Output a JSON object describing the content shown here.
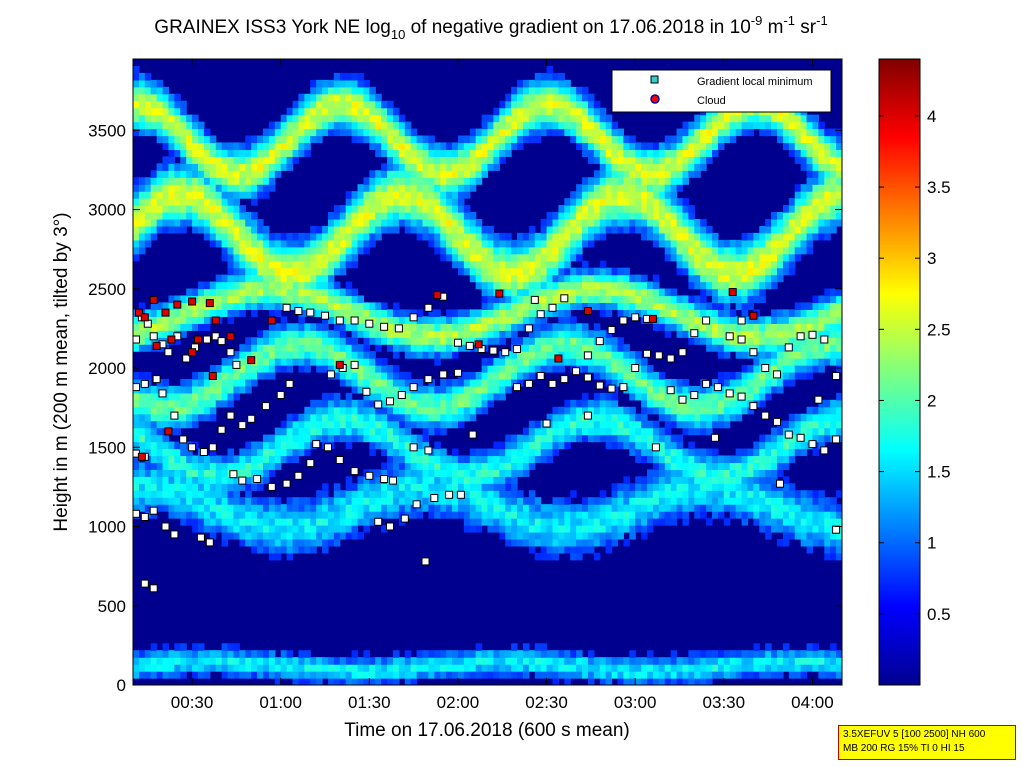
{
  "chart_data": {
    "type": "heatmap",
    "title": {
      "prefix": "GRAINEX ISS3 York NE log",
      "sub": "10",
      "middle": " of negative gradient on 17.06.2018 in 10",
      "sup1": "-9",
      "unit1": " m",
      "sup2": "-1",
      "unit2": " sr",
      "sup3": "-1"
    },
    "xlabel": "Time on 17.06.2018 (600 s mean)",
    "ylabel": "Height in m (200 m mean, tilted by 3°)",
    "xlim": [
      "00:10",
      "04:10"
    ],
    "ylim": [
      0,
      3950
    ],
    "x_ticks": [
      {
        "t": "00:30",
        "label": "00:30"
      },
      {
        "t": "01:00",
        "label": "01:00"
      },
      {
        "t": "01:30",
        "label": "01:30"
      },
      {
        "t": "02:00",
        "label": "02:00"
      },
      {
        "t": "02:30",
        "label": "02:30"
      },
      {
        "t": "03:00",
        "label": "03:00"
      },
      {
        "t": "03:30",
        "label": "03:30"
      },
      {
        "t": "04:00",
        "label": "04:00"
      }
    ],
    "y_ticks": [
      {
        "v": 0,
        "label": "0"
      },
      {
        "v": 500,
        "label": "500"
      },
      {
        "v": 1000,
        "label": "1000"
      },
      {
        "v": 1500,
        "label": "1500"
      },
      {
        "v": 2000,
        "label": "2000"
      },
      {
        "v": 2500,
        "label": "2500"
      },
      {
        "v": 3000,
        "label": "3000"
      },
      {
        "v": 3500,
        "label": "3500"
      }
    ],
    "colorbar": {
      "range": [
        0,
        4.4
      ],
      "ticks": [
        {
          "v": 0.5,
          "label": "0.5"
        },
        {
          "v": 1,
          "label": "1"
        },
        {
          "v": 1.5,
          "label": "1.5"
        },
        {
          "v": 2,
          "label": "2"
        },
        {
          "v": 2.5,
          "label": "2.5"
        },
        {
          "v": 3,
          "label": "3"
        },
        {
          "v": 3.5,
          "label": "3.5"
        },
        {
          "v": 4,
          "label": "4"
        }
      ]
    },
    "legend": {
      "position": "top-right",
      "entries": [
        {
          "label": "Gradient local minimum",
          "marker": "square",
          "color": "#33cccc"
        },
        {
          "label": "Cloud",
          "marker": "circle",
          "color": "#ff0000",
          "edge": "#0000aa"
        }
      ]
    },
    "layers": [
      {
        "base": 120,
        "amp": 30,
        "period": 100,
        "thick": 100,
        "value": 1.6
      },
      {
        "base": 1120,
        "amp": 130,
        "period": 95,
        "thick": 200,
        "value": 1.6
      },
      {
        "base": 1500,
        "amp": 180,
        "period": 85,
        "thick": 150,
        "value": 1.8
      },
      {
        "base": 1950,
        "amp": 200,
        "period": 90,
        "thick": 150,
        "value": 2.1
      },
      {
        "base": 2350,
        "amp": 150,
        "period": 110,
        "thick": 130,
        "value": 2.4
      },
      {
        "base": 2850,
        "amp": 250,
        "period": 75,
        "thick": 200,
        "value": 2.6
      },
      {
        "base": 3450,
        "amp": 220,
        "period": 70,
        "thick": 170,
        "value": 2.6
      }
    ],
    "series": [
      {
        "name": "Gradient local minimum",
        "points": [
          [
            "00:11",
            2180
          ],
          [
            "00:13",
            2320
          ],
          [
            "00:15",
            2280
          ],
          [
            "00:17",
            2200
          ],
          [
            "00:20",
            2150
          ],
          [
            "00:22",
            2100
          ],
          [
            "00:25",
            2200
          ],
          [
            "00:28",
            2060
          ],
          [
            "00:31",
            2130
          ],
          [
            "00:35",
            2180
          ],
          [
            "00:38",
            2200
          ],
          [
            "00:40",
            2170
          ],
          [
            "00:43",
            2100
          ],
          [
            "00:45",
            2020
          ],
          [
            "00:20",
            1840
          ],
          [
            "00:24",
            1700
          ],
          [
            "00:27",
            1550
          ],
          [
            "00:30",
            1500
          ],
          [
            "00:34",
            1470
          ],
          [
            "00:37",
            1500
          ],
          [
            "00:40",
            1610
          ],
          [
            "00:43",
            1700
          ],
          [
            "00:47",
            1640
          ],
          [
            "00:50",
            1680
          ],
          [
            "00:55",
            1760
          ],
          [
            "01:00",
            1830
          ],
          [
            "01:03",
            1900
          ],
          [
            "00:11",
            1880
          ],
          [
            "00:14",
            1900
          ],
          [
            "00:18",
            1930
          ],
          [
            "00:11",
            1460
          ],
          [
            "00:14",
            1440
          ],
          [
            "00:11",
            1080
          ],
          [
            "00:14",
            1060
          ],
          [
            "00:17",
            1100
          ],
          [
            "00:21",
            1000
          ],
          [
            "00:24",
            950
          ],
          [
            "00:14",
            640
          ],
          [
            "00:17",
            610
          ],
          [
            "00:33",
            930
          ],
          [
            "00:36",
            900
          ],
          [
            "00:44",
            1330
          ],
          [
            "00:47",
            1290
          ],
          [
            "00:52",
            1300
          ],
          [
            "00:57",
            1250
          ],
          [
            "01:02",
            1270
          ],
          [
            "01:06",
            1320
          ],
          [
            "01:10",
            1400
          ],
          [
            "01:12",
            1520
          ],
          [
            "01:16",
            1500
          ],
          [
            "01:20",
            1420
          ],
          [
            "01:25",
            1350
          ],
          [
            "01:30",
            1320
          ],
          [
            "01:35",
            1300
          ],
          [
            "01:38",
            1290
          ],
          [
            "01:33",
            1030
          ],
          [
            "01:37",
            1000
          ],
          [
            "01:42",
            1050
          ],
          [
            "01:46",
            1140
          ],
          [
            "01:49",
            780
          ],
          [
            "01:52",
            1180
          ],
          [
            "01:57",
            1200
          ],
          [
            "02:01",
            1200
          ],
          [
            "02:05",
            1580
          ],
          [
            "01:45",
            1500
          ],
          [
            "01:50",
            1480
          ],
          [
            "01:02",
            2380
          ],
          [
            "01:06",
            2360
          ],
          [
            "01:10",
            2350
          ],
          [
            "01:15",
            2330
          ],
          [
            "01:20",
            2300
          ],
          [
            "01:25",
            2300
          ],
          [
            "01:30",
            2280
          ],
          [
            "01:35",
            2260
          ],
          [
            "01:40",
            2250
          ],
          [
            "01:45",
            2320
          ],
          [
            "01:50",
            2380
          ],
          [
            "01:55",
            2450
          ],
          [
            "01:17",
            1960
          ],
          [
            "01:21",
            2000
          ],
          [
            "01:25",
            2020
          ],
          [
            "01:29",
            1850
          ],
          [
            "01:33",
            1770
          ],
          [
            "01:37",
            1790
          ],
          [
            "01:41",
            1830
          ],
          [
            "01:45",
            1880
          ],
          [
            "01:50",
            1930
          ],
          [
            "01:55",
            1960
          ],
          [
            "02:00",
            1970
          ],
          [
            "02:00",
            2160
          ],
          [
            "02:04",
            2140
          ],
          [
            "02:08",
            2120
          ],
          [
            "02:12",
            2110
          ],
          [
            "02:16",
            2100
          ],
          [
            "02:20",
            2120
          ],
          [
            "02:24",
            2250
          ],
          [
            "02:28",
            2340
          ],
          [
            "02:32",
            2380
          ],
          [
            "02:20",
            1880
          ],
          [
            "02:24",
            1900
          ],
          [
            "02:28",
            1950
          ],
          [
            "02:32",
            1900
          ],
          [
            "02:36",
            1930
          ],
          [
            "02:40",
            1980
          ],
          [
            "02:44",
            2080
          ],
          [
            "02:48",
            2170
          ],
          [
            "02:52",
            2240
          ],
          [
            "02:56",
            2300
          ],
          [
            "03:00",
            2320
          ],
          [
            "03:04",
            2310
          ],
          [
            "02:44",
            1940
          ],
          [
            "02:48",
            1890
          ],
          [
            "02:52",
            1870
          ],
          [
            "02:56",
            1880
          ],
          [
            "03:00",
            2000
          ],
          [
            "03:04",
            2090
          ],
          [
            "03:08",
            2080
          ],
          [
            "03:12",
            2060
          ],
          [
            "03:16",
            2100
          ],
          [
            "03:20",
            2220
          ],
          [
            "03:24",
            2300
          ],
          [
            "03:12",
            1860
          ],
          [
            "03:16",
            1800
          ],
          [
            "03:20",
            1830
          ],
          [
            "03:24",
            1900
          ],
          [
            "03:28",
            1880
          ],
          [
            "03:32",
            1840
          ],
          [
            "03:36",
            1820
          ],
          [
            "03:40",
            1760
          ],
          [
            "03:44",
            1700
          ],
          [
            "03:48",
            1660
          ],
          [
            "03:32",
            2200
          ],
          [
            "03:36",
            2180
          ],
          [
            "03:40",
            2100
          ],
          [
            "03:44",
            2000
          ],
          [
            "03:48",
            1960
          ],
          [
            "03:52",
            2130
          ],
          [
            "03:56",
            2200
          ],
          [
            "04:00",
            2210
          ],
          [
            "04:04",
            2180
          ],
          [
            "03:52",
            1580
          ],
          [
            "03:56",
            1560
          ],
          [
            "04:00",
            1520
          ],
          [
            "04:04",
            1480
          ],
          [
            "04:08",
            1550
          ],
          [
            "04:08",
            1950
          ],
          [
            "04:02",
            1800
          ],
          [
            "04:08",
            980
          ],
          [
            "03:49",
            1270
          ],
          [
            "02:30",
            1650
          ],
          [
            "02:44",
            1700
          ],
          [
            "03:07",
            1500
          ],
          [
            "03:27",
            1560
          ],
          [
            "02:26",
            2430
          ],
          [
            "02:36",
            2440
          ],
          [
            "03:36",
            2300
          ]
        ]
      },
      {
        "name": "Cloud",
        "points": [
          [
            "00:12",
            2350
          ],
          [
            "00:14",
            2320
          ],
          [
            "00:17",
            2430
          ],
          [
            "00:21",
            2350
          ],
          [
            "00:25",
            2400
          ],
          [
            "00:30",
            2420
          ],
          [
            "00:36",
            2410
          ],
          [
            "00:38",
            2300
          ],
          [
            "00:18",
            2140
          ],
          [
            "00:23",
            2180
          ],
          [
            "00:30",
            2100
          ],
          [
            "00:13",
            1440
          ],
          [
            "00:22",
            1600
          ],
          [
            "00:32",
            2180
          ],
          [
            "00:43",
            2200
          ],
          [
            "00:50",
            2050
          ],
          [
            "00:57",
            2300
          ],
          [
            "01:53",
            2460
          ],
          [
            "02:14",
            2470
          ],
          [
            "02:34",
            2060
          ],
          [
            "02:44",
            2360
          ],
          [
            "03:06",
            2310
          ],
          [
            "03:33",
            2480
          ],
          [
            "03:40",
            2330
          ],
          [
            "02:07",
            2150
          ],
          [
            "01:20",
            2020
          ],
          [
            "00:37",
            1950
          ]
        ]
      }
    ]
  },
  "stamp": {
    "line1": "3.5XEFUV 5 [100 2500] NH 600",
    "line2": "MB 200 RG 15% TI 0 HI 15"
  },
  "colors": {
    "background_low": "#00008f",
    "layer_high": "#ff3c00",
    "marker_face_min": "#33cccc",
    "cloud_face": "#ff0000",
    "stamp_bg": "#ffff00",
    "stamp_border": "#cc0000"
  }
}
